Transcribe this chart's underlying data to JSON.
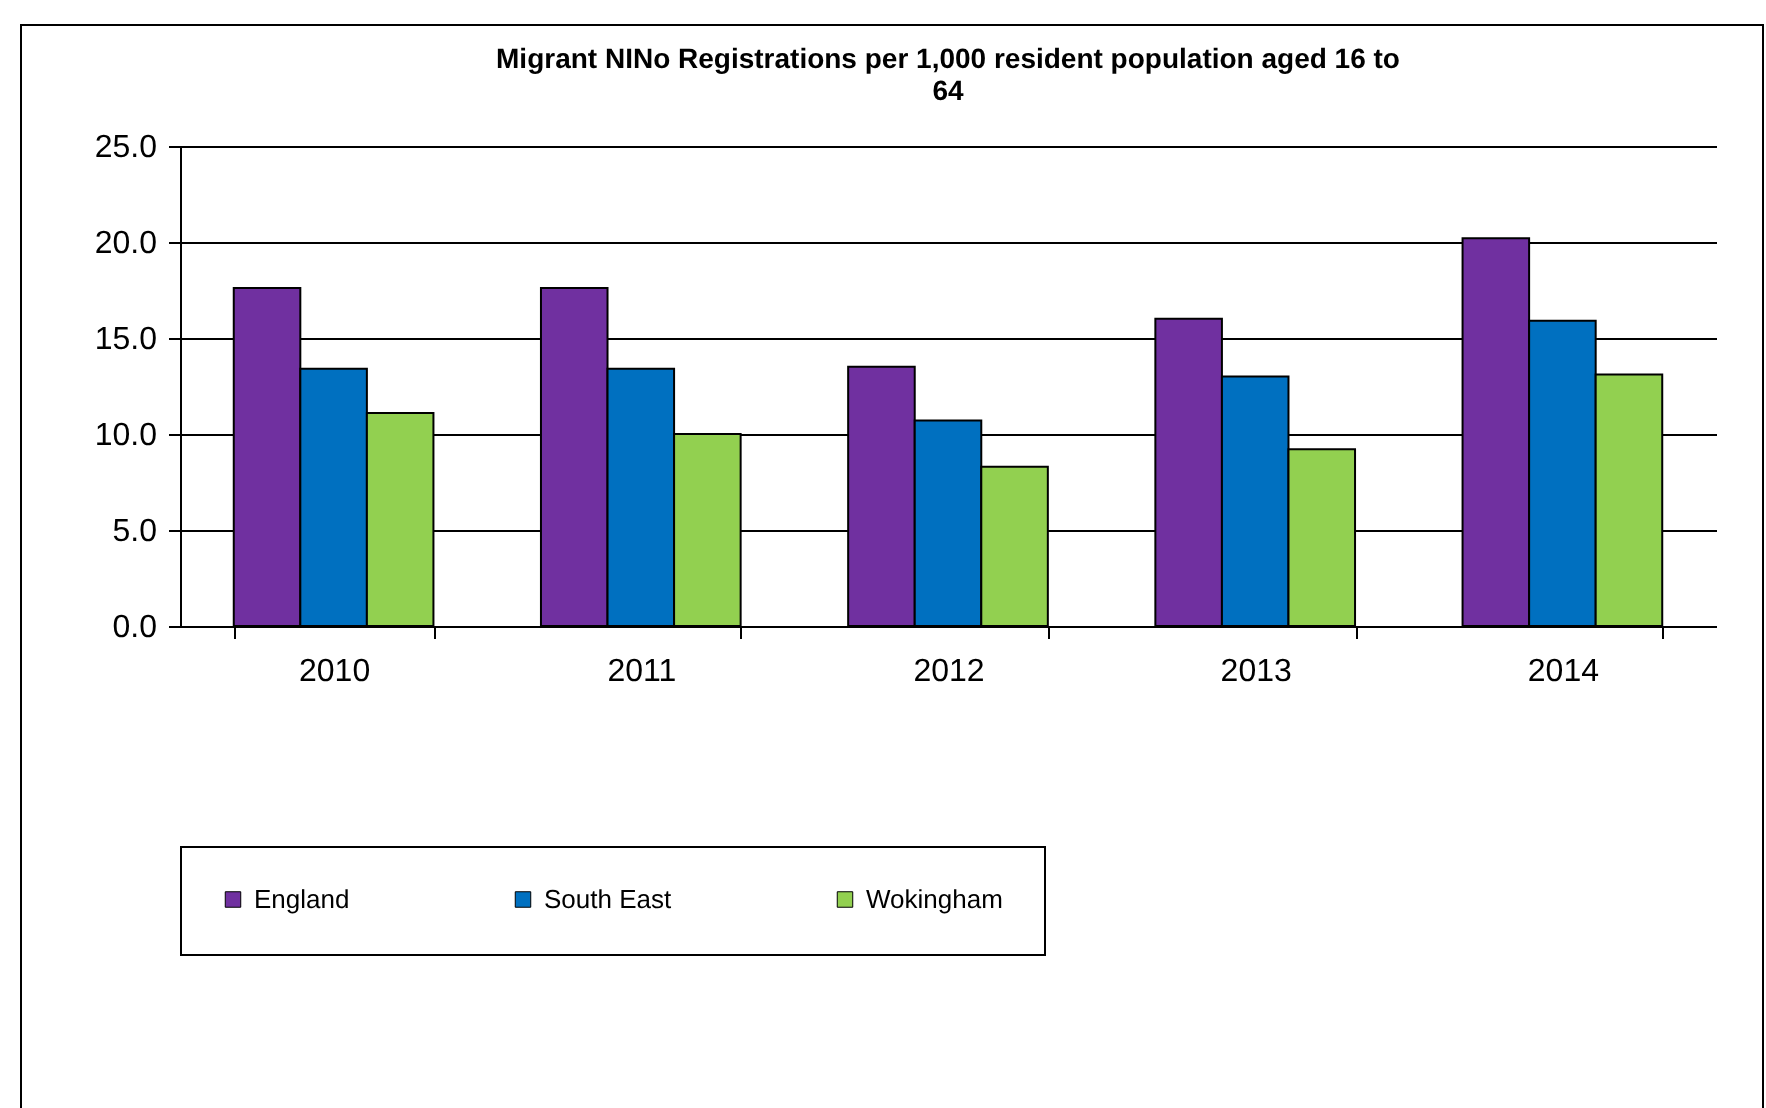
{
  "chart_data": {
    "type": "bar",
    "title": "Migrant NINo Registrations per 1,000 resident population aged 16 to 64",
    "categories": [
      "2010",
      "2011",
      "2012",
      "2013",
      "2014"
    ],
    "series": [
      {
        "name": "England",
        "color": "#7030a0",
        "values": [
          17.6,
          17.6,
          13.5,
          16.0,
          20.2
        ]
      },
      {
        "name": "South East",
        "color": "#0070c0",
        "values": [
          13.4,
          13.4,
          10.7,
          13.0,
          15.9
        ]
      },
      {
        "name": "Wokingham",
        "color": "#92d050",
        "values": [
          11.1,
          10.0,
          8.3,
          9.2,
          13.1
        ]
      }
    ],
    "ylim": [
      0,
      25
    ],
    "yticks": [
      {
        "value": 0,
        "label": "0.0"
      },
      {
        "value": 5,
        "label": "5.0"
      },
      {
        "value": 10,
        "label": "10.0"
      },
      {
        "value": 15,
        "label": "15.0"
      },
      {
        "value": 20,
        "label": "20.0"
      },
      {
        "value": 25,
        "label": "25.0"
      }
    ],
    "grid": "y",
    "legend": "bottom"
  }
}
